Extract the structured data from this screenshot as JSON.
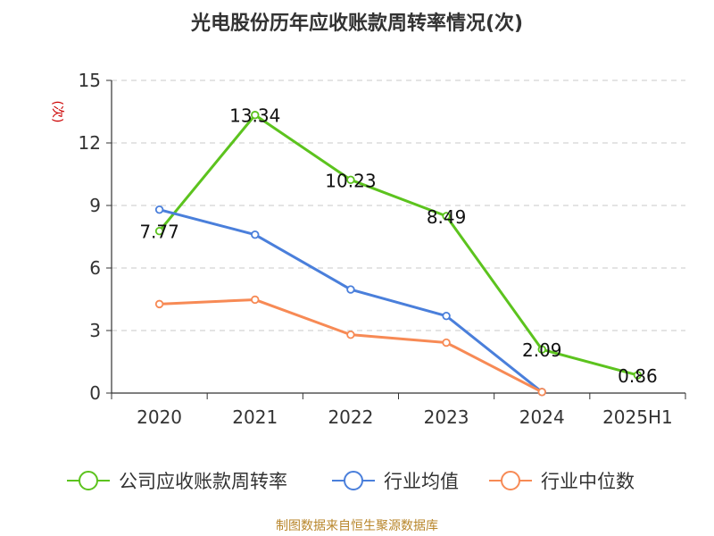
{
  "colors": {
    "company": "#5cc31e",
    "industry_avg": "#4a7fdb",
    "industry_median": "#f78a55",
    "ylabel": "#cc0000",
    "source": "#b8862b",
    "title": "#333333"
  },
  "source": "制图数据来自恒生聚源数据库",
  "chart_data": {
    "type": "line",
    "title": "光电股份历年应收账款周转率情况(次)",
    "ylabel": "(次)",
    "xlabel": "",
    "ylim": [
      0,
      15
    ],
    "yticks": [
      0,
      3,
      6,
      9,
      12,
      15
    ],
    "grid": true,
    "legend_position": "bottom",
    "categories": [
      "2020",
      "2021",
      "2022",
      "2023",
      "2024",
      "2025H1"
    ],
    "series": [
      {
        "name": "公司应收账款周转率",
        "color_key": "company",
        "values": [
          7.77,
          13.34,
          10.23,
          8.49,
          2.09,
          0.86
        ],
        "labels": [
          "7.77",
          "13.34",
          "10.23",
          "8.49",
          "2.09",
          "0.86"
        ]
      },
      {
        "name": "行业均值",
        "color_key": "industry_avg",
        "values": [
          8.8,
          7.6,
          4.97,
          3.7,
          0.05,
          null
        ]
      },
      {
        "name": "行业中位数",
        "color_key": "industry_median",
        "values": [
          4.27,
          4.48,
          2.8,
          2.42,
          0.05,
          null
        ]
      }
    ]
  }
}
